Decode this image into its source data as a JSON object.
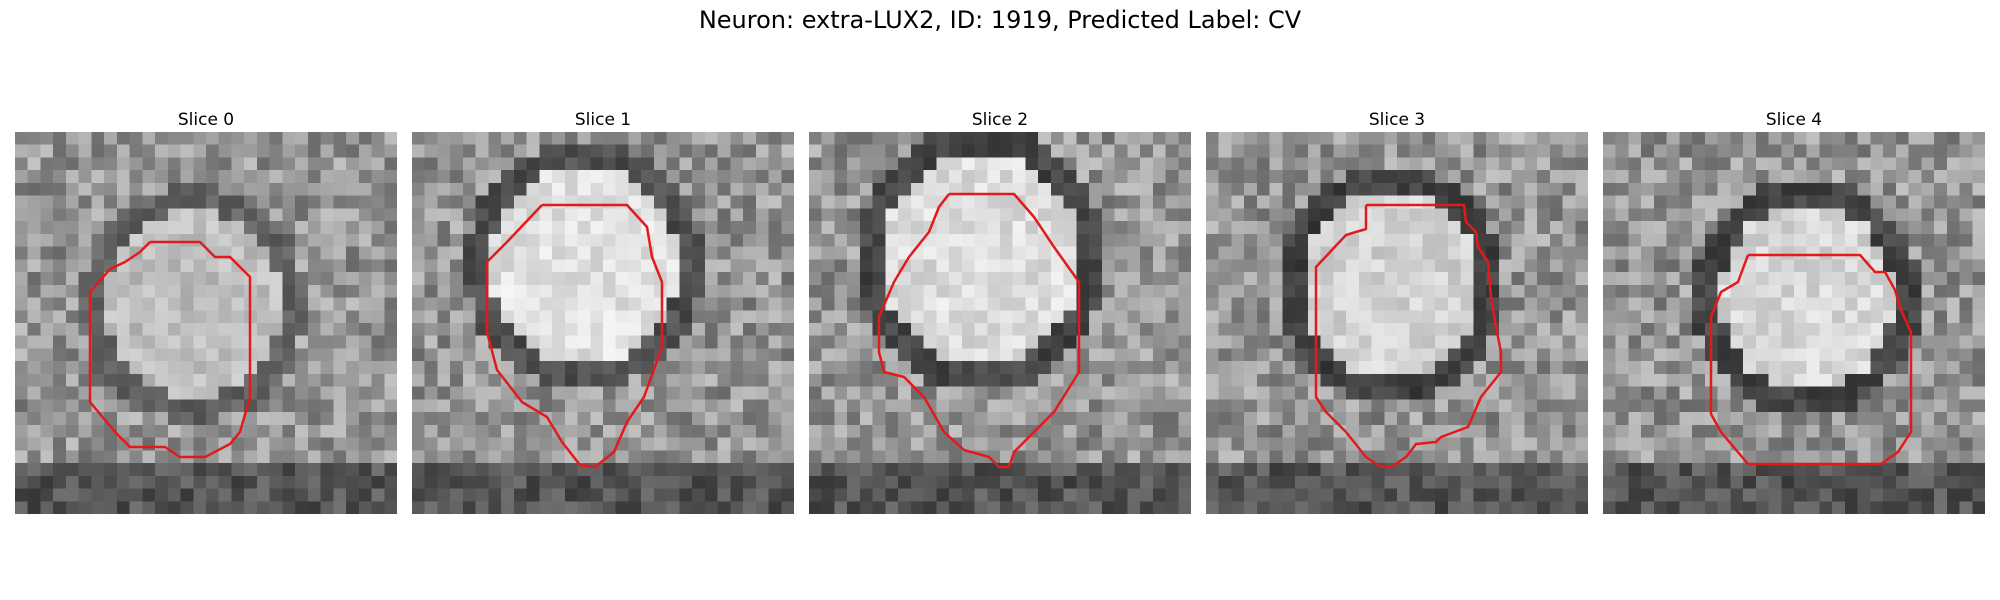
{
  "figure": {
    "title": "Neuron: extra-LUX2, ID: 1919, Predicted Label: CV",
    "colors": {
      "background": "#ffffff",
      "contour": "#e31a1c"
    },
    "slices": [
      {
        "label": "Slice 0"
      },
      {
        "label": "Slice 1"
      },
      {
        "label": "Slice 2"
      },
      {
        "label": "Slice 3"
      },
      {
        "label": "Slice 4"
      }
    ]
  }
}
